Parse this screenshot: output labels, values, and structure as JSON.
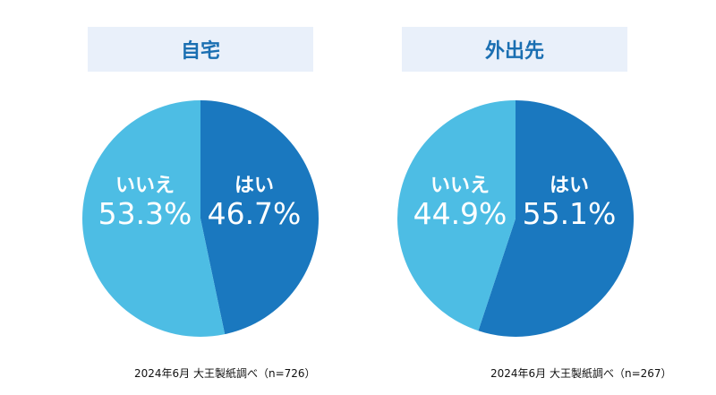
{
  "colors": {
    "yes": "#1a78bf",
    "no": "#4dbde4",
    "title_bg": "#e9f0fa",
    "title_text": "#1a6fb2"
  },
  "chart_data": [
    {
      "type": "pie",
      "title": "自宅",
      "slices": [
        {
          "label": "はい",
          "value": 46.7,
          "pct_text": "46.7%"
        },
        {
          "label": "いいえ",
          "value": 53.3,
          "pct_text": "53.3%"
        }
      ],
      "footnote": "2024年6月 大王製紙調べ（n=726）"
    },
    {
      "type": "pie",
      "title": "外出先",
      "slices": [
        {
          "label": "はい",
          "value": 55.1,
          "pct_text": "55.1%"
        },
        {
          "label": "いいえ",
          "value": 44.9,
          "pct_text": "44.9%"
        }
      ],
      "footnote": "2024年6月 大王製紙調べ（n=267）"
    }
  ]
}
